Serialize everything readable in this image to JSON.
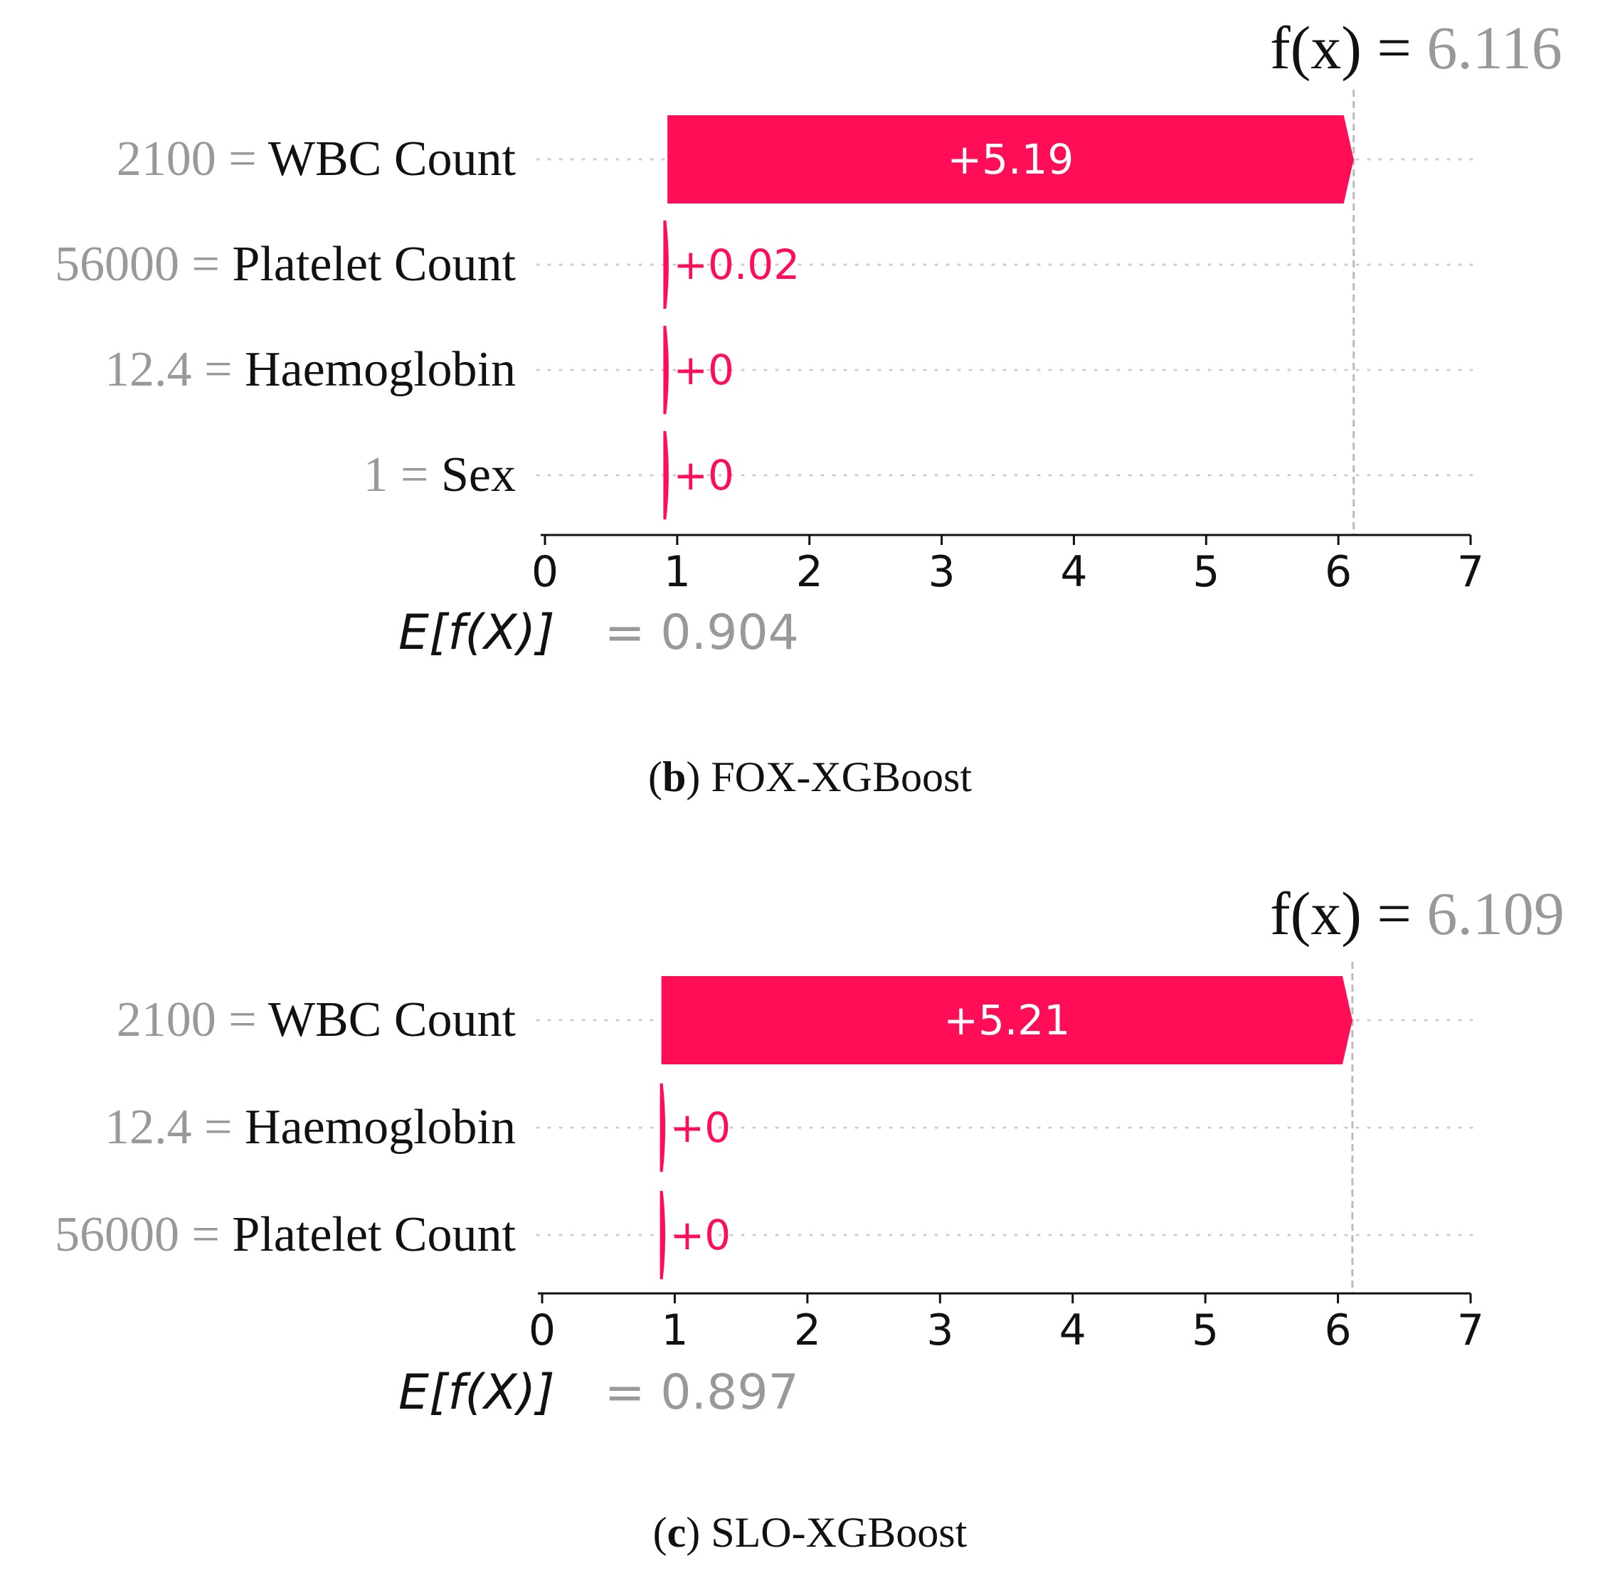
{
  "chart_data": [
    {
      "type": "waterfall",
      "panel_label": "b",
      "caption": "FOX-XGBoost",
      "fx_label": "f(x)",
      "fx_value": "6.116",
      "fx": 6.116,
      "efx_label": "E[f(X)]",
      "efx_value": "= 0.904",
      "base": 0.904,
      "features": [
        {
          "value": "2100",
          "name": "WBC Count",
          "contribution": 5.19,
          "label": "+5.19"
        },
        {
          "value": "56000",
          "name": "Platelet Count",
          "contribution": 0.02,
          "label": "+0.02"
        },
        {
          "value": "12.4",
          "name": "Haemoglobin",
          "contribution": 0.0,
          "label": "+0"
        },
        {
          "value": "1",
          "name": "Sex",
          "contribution": 0.0,
          "label": "+0"
        }
      ],
      "xlim": [
        0,
        7
      ],
      "xticks": [
        "0",
        "1",
        "2",
        "3",
        "4",
        "5",
        "6",
        "7"
      ]
    },
    {
      "type": "waterfall",
      "panel_label": "c",
      "caption": "SLO-XGBoost",
      "fx_label": "f(x)",
      "fx_value": "6.109",
      "fx": 6.109,
      "efx_label": "E[f(X)]",
      "efx_value": "= 0.897",
      "base": 0.897,
      "features": [
        {
          "value": "2100",
          "name": "WBC Count",
          "contribution": 5.21,
          "label": "+5.21"
        },
        {
          "value": "12.4",
          "name": "Haemoglobin",
          "contribution": 0.0,
          "label": "+0"
        },
        {
          "value": "56000",
          "name": "Platelet Count",
          "contribution": 0.0,
          "label": "+0"
        }
      ],
      "xlim": [
        0,
        7
      ],
      "xticks": [
        "0",
        "1",
        "2",
        "3",
        "4",
        "5",
        "6",
        "7"
      ]
    }
  ],
  "colors": {
    "positive": "#ff0d57",
    "muted_text": "#999999",
    "text": "#111111",
    "grid_dots": "#cccccc",
    "fx_line": "#bbbbbb"
  }
}
